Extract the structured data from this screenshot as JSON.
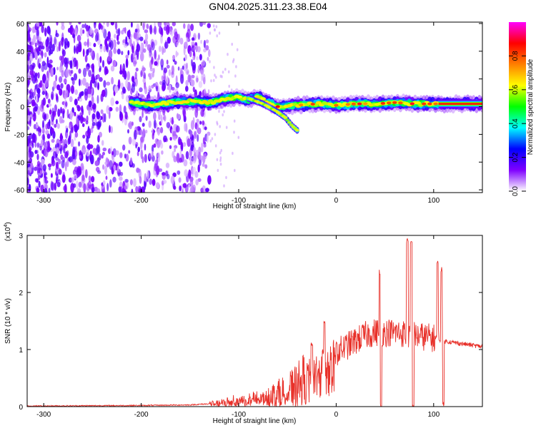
{
  "page": {
    "title": "GN04.2025.311.23.38.E04"
  },
  "chart_data": [
    {
      "type": "heatmap",
      "title": "GN04.2025.311.23.38.E04",
      "xlabel": "Height of straight line (km)",
      "ylabel": "Frequency (Hz)",
      "xlim": [
        -317,
        150
      ],
      "ylim": [
        -62,
        61
      ],
      "x_ticks": [
        -300,
        -200,
        -100,
        0,
        100
      ],
      "x_tick_labels": [
        "-300",
        "-200",
        "-100",
        "0",
        "100"
      ],
      "y_ticks": [
        60,
        40,
        20,
        0,
        -20,
        -40,
        -60
      ],
      "y_tick_labels": [
        "60",
        "40",
        "20",
        "0",
        "-20",
        "-40",
        "-60"
      ],
      "colorbar": {
        "label": "Normalized spectral amplitude",
        "range": [
          0,
          1
        ],
        "ticks": [
          0.0,
          0.2,
          0.4,
          0.6,
          0.8
        ],
        "tick_labels": [
          "0.0",
          "0.2",
          "0.4",
          "0.6",
          "0.8"
        ],
        "colormap": [
          "#ffffff",
          "#7f00ff",
          "#0000ff",
          "#00ffff",
          "#00ff00",
          "#ffff00",
          "#ff7f00",
          "#ff0000",
          "#ff00ff"
        ]
      },
      "features": {
        "noise_region_x": [
          -317,
          -130
        ],
        "main_band": [
          {
            "x": -210,
            "f": 3
          },
          {
            "x": -190,
            "f": 1
          },
          {
            "x": -170,
            "f": 3
          },
          {
            "x": -150,
            "f": 4
          },
          {
            "x": -130,
            "f": 3
          },
          {
            "x": -110,
            "f": 6
          },
          {
            "x": -100,
            "f": 7
          },
          {
            "x": -90,
            "f": 5
          },
          {
            "x": -80,
            "f": 7
          },
          {
            "x": -70,
            "f": 3
          },
          {
            "x": -60,
            "f": 0
          },
          {
            "x": -40,
            "f": 1
          },
          {
            "x": -20,
            "f": 2
          },
          {
            "x": 0,
            "f": 1
          },
          {
            "x": 20,
            "f": 2
          },
          {
            "x": 40,
            "f": 2
          },
          {
            "x": 60,
            "f": 3
          },
          {
            "x": 80,
            "f": 2
          },
          {
            "x": 100,
            "f": 2
          },
          {
            "x": 150,
            "f": 2
          }
        ],
        "descending_branch": [
          {
            "x": -90,
            "f": 6
          },
          {
            "x": -75,
            "f": 2
          },
          {
            "x": -62,
            "f": -3
          },
          {
            "x": -52,
            "f": -8
          },
          {
            "x": -45,
            "f": -14
          },
          {
            "x": -40,
            "f": -17
          }
        ]
      }
    },
    {
      "type": "line",
      "xlabel": "Height of straight line (km)",
      "ylabel": "SNR (10 * v/v)",
      "y_multiplier_label": "(x10",
      "y_multiplier_exp": "4",
      "y_multiplier_close": ")",
      "xlim": [
        -317,
        150
      ],
      "ylim": [
        0,
        3
      ],
      "x_ticks": [
        -300,
        -200,
        -100,
        0,
        100
      ],
      "x_tick_labels": [
        "-300",
        "-200",
        "-100",
        "0",
        "100"
      ],
      "y_ticks": [
        0,
        1,
        2,
        3
      ],
      "y_tick_labels": [
        "0",
        "1",
        "2",
        "3"
      ],
      "color": "#e8312a",
      "envelope": [
        {
          "x": -317,
          "y": 0.01
        },
        {
          "x": -200,
          "y": 0.02
        },
        {
          "x": -150,
          "y": 0.03
        },
        {
          "x": -120,
          "y": 0.06
        },
        {
          "x": -110,
          "y": 0.1
        },
        {
          "x": -100,
          "y": 0.12
        },
        {
          "x": -80,
          "y": 0.15
        },
        {
          "x": -60,
          "y": 0.25
        },
        {
          "x": -40,
          "y": 0.4
        },
        {
          "x": -30,
          "y": 0.55
        },
        {
          "x": -20,
          "y": 0.7
        },
        {
          "x": -10,
          "y": 0.85
        },
        {
          "x": 0,
          "y": 0.95
        },
        {
          "x": 10,
          "y": 1.05
        },
        {
          "x": 20,
          "y": 1.15
        },
        {
          "x": 30,
          "y": 1.25
        },
        {
          "x": 40,
          "y": 1.3
        },
        {
          "x": 60,
          "y": 1.3
        },
        {
          "x": 80,
          "y": 1.25
        },
        {
          "x": 100,
          "y": 1.2
        },
        {
          "x": 110,
          "y": 1.15
        },
        {
          "x": 130,
          "y": 1.1
        },
        {
          "x": 150,
          "y": 1.05
        }
      ],
      "spikes": [
        {
          "x": -25,
          "y": 1.15
        },
        {
          "x": -12,
          "y": 1.5
        },
        {
          "x": 45,
          "y": 2.4
        },
        {
          "x": 46,
          "y": 0.05
        },
        {
          "x": 73,
          "y": 2.95
        },
        {
          "x": 77,
          "y": 2.95
        },
        {
          "x": 79,
          "y": 0.05
        },
        {
          "x": 104,
          "y": 2.6
        },
        {
          "x": 108,
          "y": 2.45
        },
        {
          "x": 110,
          "y": 0.1
        }
      ]
    }
  ]
}
